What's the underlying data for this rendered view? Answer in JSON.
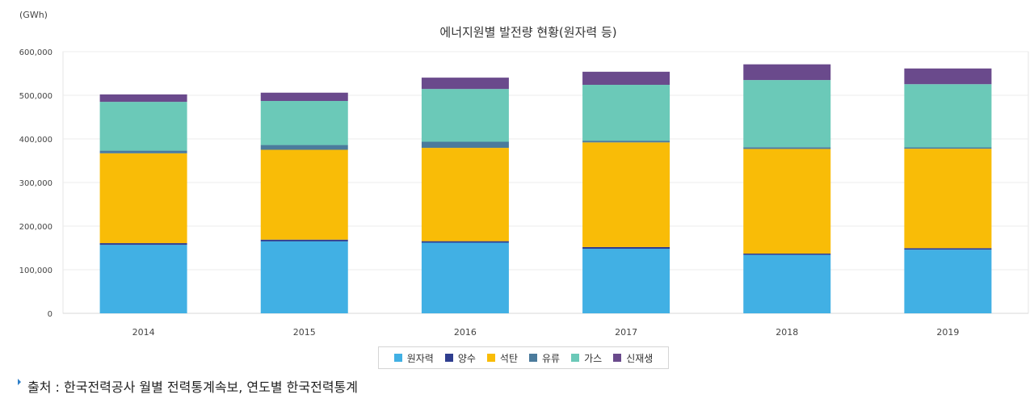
{
  "chart_data": {
    "type": "bar",
    "stacked": true,
    "title": "에너지원별 발전량 현황(원자력 등)",
    "unit_label": "(GWh)",
    "categories": [
      "2014",
      "2015",
      "2016",
      "2017",
      "2018",
      "2019"
    ],
    "ylim": [
      0,
      600000
    ],
    "yticks": [
      "0",
      "100,000",
      "200,000",
      "300,000",
      "400,000",
      "500,000",
      "600,000"
    ],
    "ytick_values": [
      0,
      100000,
      200000,
      300000,
      400000,
      500000,
      600000
    ],
    "grid": true,
    "legend_position": "bottom",
    "series": [
      {
        "name": "원자력",
        "color": "#41b0e4",
        "values": [
          157000,
          165000,
          162000,
          148000,
          134000,
          146000
        ]
      },
      {
        "name": "양수",
        "color": "#2f3e8f",
        "values": [
          4000,
          4000,
          3500,
          4000,
          3000,
          3500
        ]
      },
      {
        "name": "석탄",
        "color": "#f9bc07",
        "values": [
          206000,
          206000,
          214000,
          240000,
          240000,
          228000
        ]
      },
      {
        "name": "유류",
        "color": "#4b7b9c",
        "values": [
          6000,
          11000,
          14000,
          4000,
          4000,
          3000
        ]
      },
      {
        "name": "가스",
        "color": "#6bc9b8",
        "values": [
          112000,
          101000,
          121000,
          128000,
          154000,
          145000
        ]
      },
      {
        "name": "신재생",
        "color": "#6a4a8c",
        "values": [
          17000,
          19000,
          26000,
          30000,
          36000,
          36000
        ]
      }
    ]
  },
  "source_text": "출처 : 한국전력공사 월별 전력통계속보, 연도별 한국전력통계"
}
